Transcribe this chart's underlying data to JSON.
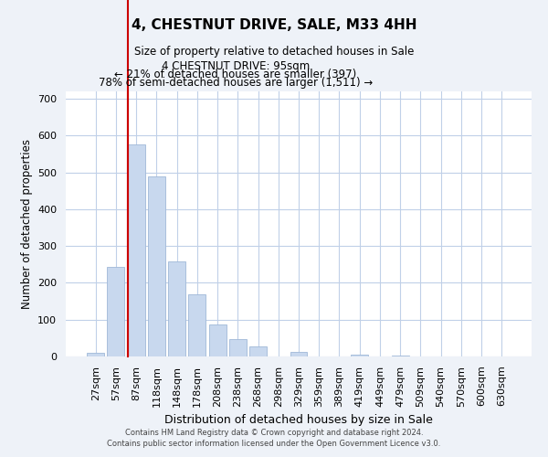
{
  "title": "4, CHESTNUT DRIVE, SALE, M33 4HH",
  "subtitle": "Size of property relative to detached houses in Sale",
  "xlabel": "Distribution of detached houses by size in Sale",
  "ylabel": "Number of detached properties",
  "bar_labels": [
    "27sqm",
    "57sqm",
    "87sqm",
    "118sqm",
    "148sqm",
    "178sqm",
    "208sqm",
    "238sqm",
    "268sqm",
    "298sqm",
    "329sqm",
    "359sqm",
    "389sqm",
    "419sqm",
    "449sqm",
    "479sqm",
    "509sqm",
    "540sqm",
    "570sqm",
    "600sqm",
    "630sqm"
  ],
  "bar_values": [
    10,
    243,
    575,
    490,
    258,
    168,
    88,
    47,
    27,
    0,
    12,
    0,
    0,
    5,
    0,
    3,
    0,
    0,
    0,
    0,
    0
  ],
  "bar_color": "#c8d8ee",
  "bar_edge_color": "#a0b8d8",
  "ylim": [
    0,
    720
  ],
  "yticks": [
    0,
    100,
    200,
    300,
    400,
    500,
    600,
    700
  ],
  "marker_bar_index": 2,
  "marker_color": "#cc0000",
  "annotation_title": "4 CHESTNUT DRIVE: 95sqm",
  "annotation_line1": "← 21% of detached houses are smaller (397)",
  "annotation_line2": "78% of semi-detached houses are larger (1,511) →",
  "footer_line1": "Contains HM Land Registry data © Crown copyright and database right 2024.",
  "footer_line2": "Contains public sector information licensed under the Open Government Licence v3.0.",
  "background_color": "#eef2f8",
  "plot_bg_color": "#ffffff",
  "grid_color": "#c0d0e8"
}
